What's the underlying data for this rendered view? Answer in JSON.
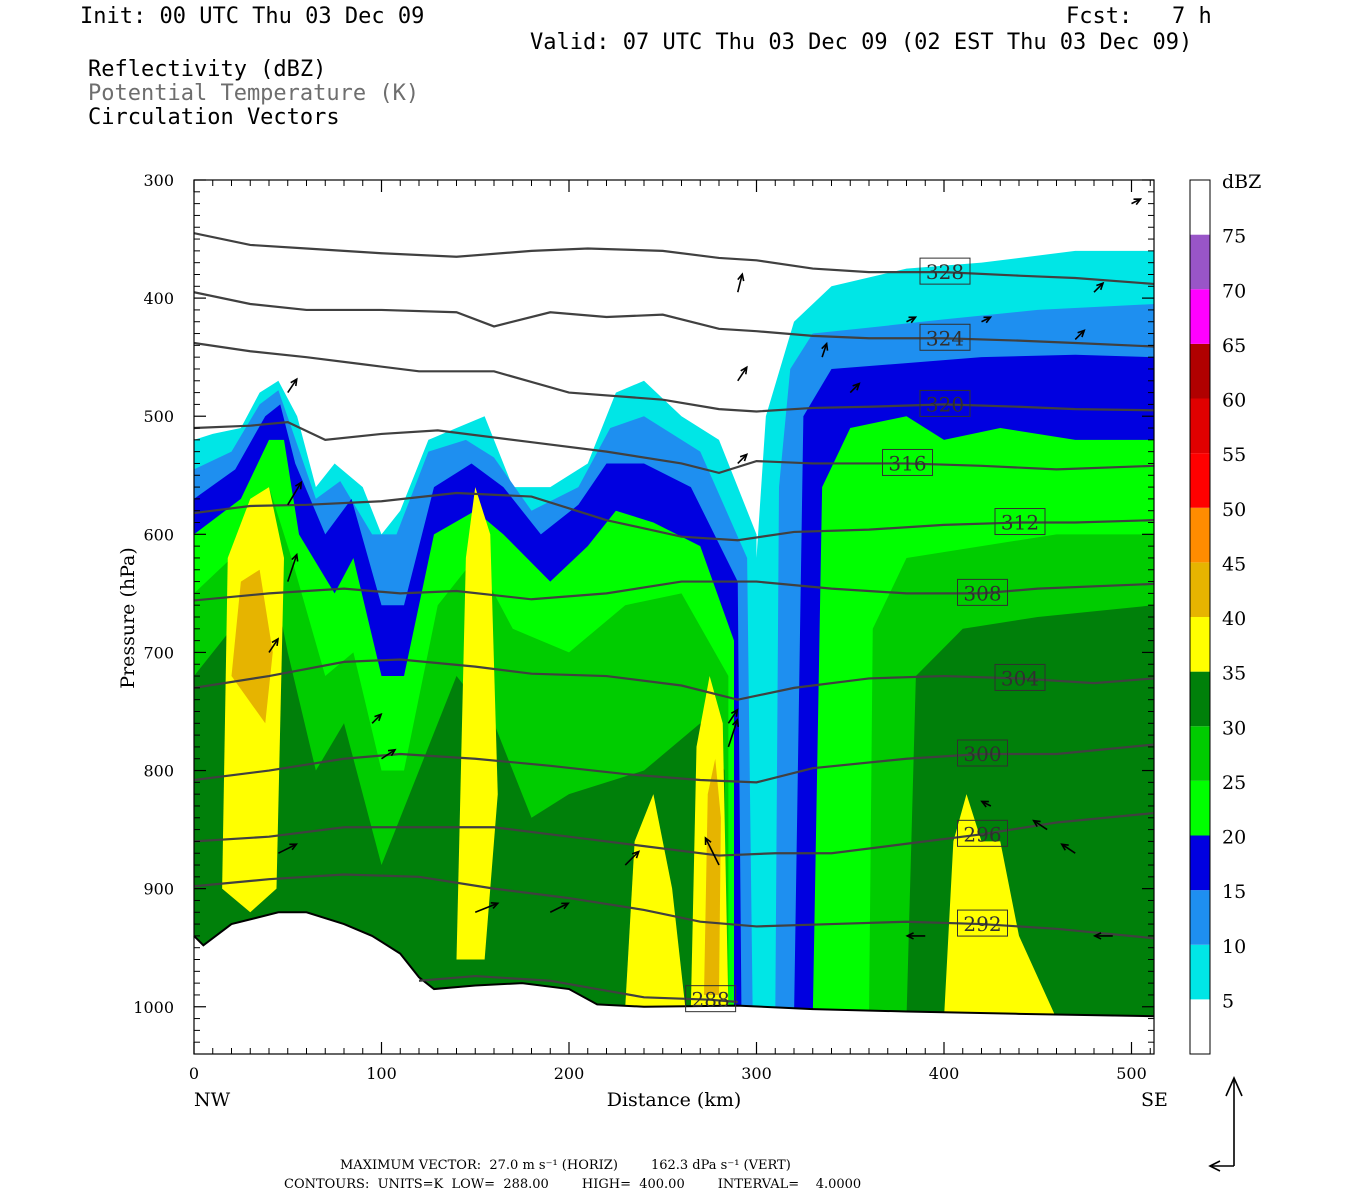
{
  "header": {
    "init": "Init: 00 UTC Thu 03 Dec 09",
    "fcst": "Fcst:   7 h",
    "valid": "Valid: 07 UTC Thu 03 Dec 09 (02 EST Thu 03 Dec 09)",
    "fields": [
      "Reflectivity (dBZ)",
      "Potential Temperature (K)",
      "Circulation Vectors"
    ]
  },
  "footer": {
    "max_vector": "MAXIMUM VECTOR:  27.0 m s⁻¹ (HORIZ)        162.3 dPa s⁻¹ (VERT)",
    "contours": "CONTOURS:  UNITS=K  LOW=  288.00        HIGH=  400.00        INTERVAL=    4.0000"
  },
  "chart_data": {
    "type": "heatmap",
    "xlabel": "Distance (km)",
    "ylabel": "Pressure (hPa)",
    "xlim": [
      0,
      512
    ],
    "ylim": [
      1040,
      300
    ],
    "x_ticks": [
      "0",
      "100",
      "200",
      "300",
      "400",
      "500"
    ],
    "x_tick_values": [
      0,
      100,
      200,
      300,
      400,
      500
    ],
    "x_end_labels": {
      "left": "NW",
      "right": "SE"
    },
    "y_ticks": [
      "300",
      "400",
      "500",
      "600",
      "700",
      "800",
      "900",
      "1000"
    ],
    "y_tick_values": [
      300,
      400,
      500,
      600,
      700,
      800,
      900,
      1000
    ],
    "colorbar": {
      "title": "dBZ",
      "levels": [
        5,
        10,
        15,
        20,
        25,
        30,
        35,
        40,
        45,
        50,
        55,
        60,
        65,
        70,
        75
      ],
      "labels": [
        "5",
        "10",
        "15",
        "20",
        "25",
        "30",
        "35",
        "40",
        "45",
        "50",
        "55",
        "60",
        "65",
        "70",
        "75"
      ],
      "colors": [
        "#ffffff",
        "#00e6e6",
        "#1e8ff0",
        "#0000e0",
        "#00ff00",
        "#00cc00",
        "#00800a",
        "#ffff00",
        "#e6b400",
        "#ff8c00",
        "#ff0000",
        "#e00000",
        "#b00000",
        "#ff00ff",
        "#9955c8",
        "#ffffff"
      ]
    },
    "theta_contours": [
      {
        "value": 328,
        "label": "328",
        "points": [
          [
            0,
            345
          ],
          [
            30,
            355
          ],
          [
            60,
            358
          ],
          [
            100,
            362
          ],
          [
            140,
            365
          ],
          [
            180,
            360
          ],
          [
            210,
            358
          ],
          [
            250,
            360
          ],
          [
            280,
            366
          ],
          [
            300,
            368
          ],
          [
            330,
            375
          ],
          [
            360,
            378
          ],
          [
            400,
            378
          ],
          [
            440,
            381
          ],
          [
            470,
            383
          ],
          [
            512,
            388
          ]
        ]
      },
      {
        "value": 324,
        "label": "324",
        "points": [
          [
            0,
            395
          ],
          [
            30,
            405
          ],
          [
            60,
            410
          ],
          [
            100,
            410
          ],
          [
            140,
            412
          ],
          [
            160,
            424
          ],
          [
            190,
            412
          ],
          [
            220,
            416
          ],
          [
            250,
            414
          ],
          [
            280,
            426
          ],
          [
            300,
            428
          ],
          [
            330,
            432
          ],
          [
            360,
            434
          ],
          [
            400,
            434
          ],
          [
            440,
            436
          ],
          [
            470,
            438
          ],
          [
            512,
            441
          ]
        ]
      },
      {
        "value": 320,
        "label": "320",
        "points": [
          [
            0,
            438
          ],
          [
            30,
            445
          ],
          [
            60,
            450
          ],
          [
            90,
            456
          ],
          [
            120,
            462
          ],
          [
            160,
            462
          ],
          [
            200,
            480
          ],
          [
            250,
            486
          ],
          [
            280,
            494
          ],
          [
            300,
            496
          ],
          [
            330,
            493
          ],
          [
            360,
            492
          ],
          [
            400,
            490
          ],
          [
            440,
            492
          ],
          [
            470,
            494
          ],
          [
            512,
            495
          ]
        ]
      },
      {
        "value": 316,
        "label": "316",
        "points": [
          [
            0,
            510
          ],
          [
            30,
            508
          ],
          [
            50,
            505
          ],
          [
            70,
            520
          ],
          [
            100,
            515
          ],
          [
            130,
            512
          ],
          [
            180,
            522
          ],
          [
            220,
            530
          ],
          [
            260,
            540
          ],
          [
            280,
            548
          ],
          [
            300,
            538
          ],
          [
            330,
            540
          ],
          [
            380,
            540
          ],
          [
            420,
            542
          ],
          [
            460,
            545
          ],
          [
            512,
            542
          ]
        ]
      },
      {
        "value": 312,
        "label": "312",
        "points": [
          [
            0,
            582
          ],
          [
            30,
            576
          ],
          [
            60,
            575
          ],
          [
            100,
            572
          ],
          [
            140,
            565
          ],
          [
            180,
            568
          ],
          [
            220,
            588
          ],
          [
            260,
            602
          ],
          [
            290,
            605
          ],
          [
            320,
            598
          ],
          [
            360,
            596
          ],
          [
            400,
            592
          ],
          [
            440,
            590
          ],
          [
            470,
            590
          ],
          [
            512,
            588
          ]
        ]
      },
      {
        "value": 308,
        "label": "308",
        "points": [
          [
            0,
            656
          ],
          [
            40,
            650
          ],
          [
            80,
            646
          ],
          [
            110,
            650
          ],
          [
            140,
            648
          ],
          [
            180,
            655
          ],
          [
            220,
            650
          ],
          [
            260,
            640
          ],
          [
            300,
            640
          ],
          [
            340,
            646
          ],
          [
            380,
            650
          ],
          [
            420,
            650
          ],
          [
            450,
            646
          ],
          [
            512,
            642
          ]
        ]
      },
      {
        "value": 304,
        "label": "304",
        "points": [
          [
            0,
            730
          ],
          [
            40,
            720
          ],
          [
            80,
            708
          ],
          [
            110,
            706
          ],
          [
            150,
            712
          ],
          [
            180,
            718
          ],
          [
            220,
            720
          ],
          [
            260,
            728
          ],
          [
            290,
            740
          ],
          [
            320,
            730
          ],
          [
            360,
            722
          ],
          [
            400,
            720
          ],
          [
            440,
            722
          ],
          [
            480,
            726
          ],
          [
            512,
            722
          ]
        ]
      },
      {
        "value": 300,
        "label": "300",
        "points": [
          [
            0,
            808
          ],
          [
            40,
            800
          ],
          [
            80,
            790
          ],
          [
            110,
            786
          ],
          [
            150,
            790
          ],
          [
            190,
            796
          ],
          [
            230,
            803
          ],
          [
            270,
            808
          ],
          [
            300,
            810
          ],
          [
            330,
            798
          ],
          [
            380,
            790
          ],
          [
            420,
            786
          ],
          [
            460,
            786
          ],
          [
            512,
            778
          ]
        ]
      },
      {
        "value": 296,
        "label": "296",
        "points": [
          [
            0,
            860
          ],
          [
            40,
            856
          ],
          [
            80,
            848
          ],
          [
            120,
            848
          ],
          [
            160,
            848
          ],
          [
            200,
            856
          ],
          [
            240,
            864
          ],
          [
            280,
            872
          ],
          [
            310,
            870
          ],
          [
            340,
            870
          ],
          [
            380,
            862
          ],
          [
            420,
            854
          ],
          [
            460,
            844
          ],
          [
            512,
            836
          ]
        ]
      },
      {
        "value": 292,
        "label": "292",
        "points": [
          [
            0,
            898
          ],
          [
            40,
            892
          ],
          [
            80,
            888
          ],
          [
            120,
            890
          ],
          [
            160,
            900
          ],
          [
            200,
            908
          ],
          [
            240,
            918
          ],
          [
            270,
            928
          ],
          [
            300,
            932
          ],
          [
            340,
            930
          ],
          [
            380,
            928
          ],
          [
            420,
            930
          ],
          [
            460,
            934
          ],
          [
            512,
            942
          ]
        ]
      },
      {
        "value": 288,
        "label": "288",
        "points": [
          [
            120,
            978
          ],
          [
            150,
            974
          ],
          [
            190,
            978
          ],
          [
            215,
            985
          ],
          [
            240,
            992
          ],
          [
            275,
            994
          ],
          [
            290,
            996
          ]
        ]
      }
    ],
    "vectors": [
      [
        50,
        480,
        0.2,
        0.3
      ],
      [
        50,
        640,
        0.2,
        0.6
      ],
      [
        50,
        575,
        0.3,
        0.5
      ],
      [
        45,
        870,
        0.4,
        0.2
      ],
      [
        40,
        700,
        0.2,
        0.3
      ],
      [
        100,
        790,
        0.3,
        0.2
      ],
      [
        95,
        760,
        0.2,
        0.2
      ],
      [
        150,
        920,
        0.5,
        0.2
      ],
      [
        190,
        920,
        0.4,
        0.2
      ],
      [
        230,
        880,
        0.3,
        0.3
      ],
      [
        280,
        880,
        -0.3,
        0.6
      ],
      [
        285,
        780,
        0.2,
        0.6
      ],
      [
        285,
        760,
        0.2,
        0.3
      ],
      [
        290,
        395,
        0.1,
        0.4
      ],
      [
        290,
        470,
        0.2,
        0.3
      ],
      [
        290,
        540,
        0.2,
        0.2
      ],
      [
        335,
        450,
        0.1,
        0.3
      ],
      [
        350,
        480,
        0.2,
        0.2
      ],
      [
        390,
        940,
        -0.4,
        0.0
      ],
      [
        425,
        830,
        -0.2,
        0.1
      ],
      [
        455,
        850,
        -0.3,
        0.2
      ],
      [
        470,
        870,
        -0.3,
        0.2
      ],
      [
        490,
        940,
        -0.4,
        0.0
      ],
      [
        480,
        395,
        0.2,
        0.2
      ],
      [
        470,
        435,
        0.2,
        0.2
      ],
      [
        500,
        320,
        0.2,
        0.1
      ],
      [
        420,
        420,
        0.2,
        0.1
      ],
      [
        380,
        420,
        0.2,
        0.1
      ]
    ]
  }
}
